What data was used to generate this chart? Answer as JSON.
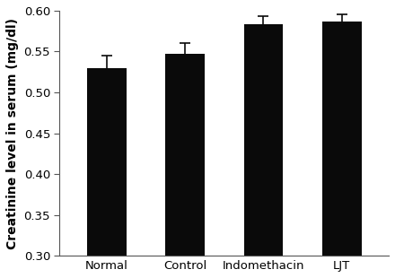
{
  "categories": [
    "Normal",
    "Control",
    "Indomethacin",
    "LJT"
  ],
  "values": [
    0.53,
    0.547,
    0.583,
    0.587
  ],
  "errors": [
    0.015,
    0.013,
    0.01,
    0.008
  ],
  "bar_color": "#0a0a0a",
  "bar_width": 0.5,
  "ylabel": "Creatinine level in serum (mg/dl)",
  "ylim": [
    0.3,
    0.6
  ],
  "yticks": [
    0.3,
    0.35,
    0.4,
    0.45,
    0.5,
    0.55,
    0.6
  ],
  "ylabel_fontsize": 10,
  "tick_fontsize": 9.5,
  "background_color": "#ffffff",
  "error_capsize": 4,
  "error_linewidth": 1.2,
  "error_color": "#0a0a0a"
}
